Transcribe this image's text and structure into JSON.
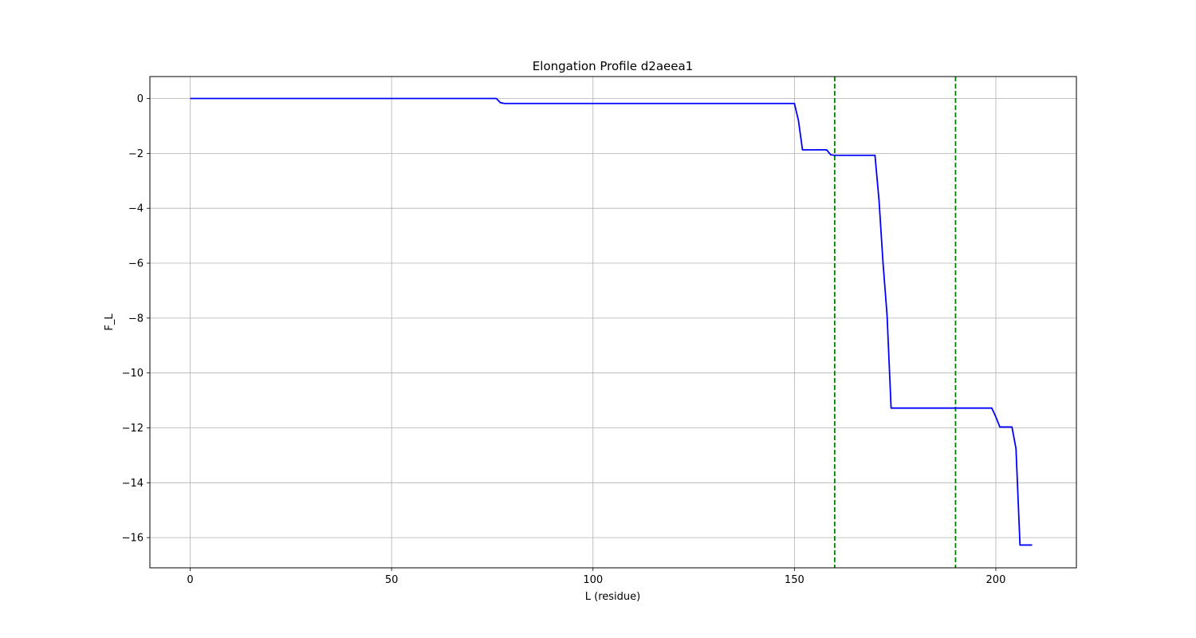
{
  "chart_data": {
    "type": "line",
    "title": "Elongation Profile d2aeea1",
    "xlabel": "L (residue)",
    "ylabel": "F_L",
    "xlim": [
      -10,
      220
    ],
    "ylim": [
      -17.1,
      0.8
    ],
    "xticks": [
      0,
      50,
      100,
      150,
      200
    ],
    "yticks": [
      0,
      -2,
      -4,
      -6,
      -8,
      -10,
      -12,
      -14,
      -16
    ],
    "xtick_labels": [
      "0",
      "50",
      "100",
      "150",
      "200"
    ],
    "ytick_labels": [
      "0",
      "−2",
      "−4",
      "−6",
      "−8",
      "−10",
      "−12",
      "−14",
      "−16"
    ],
    "grid": true,
    "legend": false,
    "series": [
      {
        "color": "#0000ff",
        "x": [
          0,
          76,
          77,
          78,
          79,
          150,
          151,
          152,
          158,
          159,
          160,
          170,
          171,
          172,
          173,
          174,
          199,
          200,
          201,
          202,
          203,
          204,
          205,
          206,
          207,
          208,
          209
        ],
        "y": [
          0,
          0,
          -0.15,
          -0.18,
          -0.18,
          -0.18,
          -0.8,
          -1.87,
          -1.87,
          -2.05,
          -2.07,
          -2.07,
          -3.7,
          -6.0,
          -7.9,
          -11.28,
          -11.28,
          -11.6,
          -11.97,
          -11.97,
          -11.97,
          -11.97,
          -12.75,
          -16.27,
          -16.27,
          -16.27,
          -16.27
        ]
      }
    ],
    "vlines": [
      {
        "x": 160,
        "color": "#008000",
        "style": "dashed"
      },
      {
        "x": 190,
        "color": "#008000",
        "style": "dashed"
      }
    ]
  }
}
